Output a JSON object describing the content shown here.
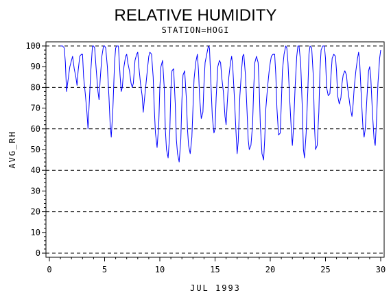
{
  "chart_data": {
    "type": "line",
    "title": "RELATIVE HUMIDITY",
    "subtitle": "STATION=HOGI",
    "xlabel": "JUL 1993",
    "ylabel": "AVG_RH",
    "xlim": [
      0,
      30
    ],
    "ylim": [
      0,
      100
    ],
    "x_ticks": [
      0,
      5,
      10,
      15,
      20,
      25,
      30
    ],
    "y_ticks": [
      0,
      10,
      20,
      30,
      40,
      50,
      60,
      70,
      80,
      90,
      100
    ],
    "reference_lines": [
      0,
      20,
      40,
      60,
      80,
      100
    ],
    "grid": false,
    "line_color": "#0000ff",
    "series": [
      {
        "x": [
          1.0,
          1.1,
          1.2,
          1.35,
          1.45,
          1.55,
          1.7,
          1.85,
          2.0,
          2.1,
          2.25,
          2.4,
          2.5,
          2.6,
          2.75,
          2.9,
          3.0,
          3.1,
          3.25,
          3.4,
          3.5,
          3.6,
          3.75,
          3.9,
          4.0,
          4.1,
          4.25,
          4.4,
          4.5,
          4.6,
          4.75,
          4.9,
          5.0,
          5.1,
          5.25,
          5.4,
          5.5,
          5.6,
          5.75,
          5.9,
          6.0,
          6.1,
          6.25,
          6.4,
          6.5,
          6.6,
          6.75,
          6.9,
          7.0,
          7.1,
          7.25,
          7.4,
          7.5,
          7.6,
          7.75,
          7.9,
          8.0,
          8.1,
          8.25,
          8.4,
          8.5,
          8.6,
          8.75,
          8.9,
          9.0,
          9.1,
          9.25,
          9.4,
          9.5,
          9.6,
          9.75,
          9.9,
          10.0,
          10.1,
          10.25,
          10.4,
          10.5,
          10.6,
          10.75,
          10.9,
          11.0,
          11.1,
          11.25,
          11.4,
          11.5,
          11.6,
          11.75,
          11.9,
          12.0,
          12.1,
          12.25,
          12.4,
          12.5,
          12.6,
          12.75,
          12.9,
          13.0,
          13.1,
          13.25,
          13.4,
          13.5,
          13.6,
          13.75,
          13.9,
          14.0,
          14.1,
          14.25,
          14.4,
          14.5,
          14.6,
          14.75,
          14.9,
          15.0,
          15.1,
          15.25,
          15.4,
          15.5,
          15.6,
          15.75,
          15.9,
          16.0,
          16.1,
          16.25,
          16.4,
          16.5,
          16.6,
          16.75,
          16.9,
          17.0,
          17.1,
          17.25,
          17.4,
          17.5,
          17.6,
          17.75,
          17.9,
          18.0,
          18.1,
          18.25,
          18.4,
          18.5,
          18.6,
          18.75,
          18.9,
          19.0,
          19.1,
          19.25,
          19.4,
          19.5,
          19.6,
          19.75,
          19.9,
          20.0,
          20.1,
          20.25,
          20.4,
          20.5,
          20.6,
          20.75,
          20.9,
          21.0,
          21.1,
          21.25,
          21.4,
          21.5,
          21.6,
          21.75,
          21.9,
          22.0,
          22.1,
          22.25,
          22.4,
          22.5,
          22.6,
          22.75,
          22.9,
          23.0,
          23.1,
          23.25,
          23.4,
          23.5,
          23.6,
          23.75,
          23.9,
          24.0,
          24.1,
          24.25,
          24.4,
          24.5,
          24.6,
          24.75,
          24.9,
          25.0,
          25.1,
          25.25,
          25.4,
          25.5,
          25.6,
          25.75,
          25.9,
          26.0,
          26.1,
          26.25,
          26.4,
          26.5,
          26.6,
          26.75,
          26.9,
          27.0,
          27.1,
          27.25,
          27.4,
          27.5,
          27.6,
          27.75,
          27.9,
          28.0,
          28.1,
          28.25,
          28.4,
          28.5,
          28.6,
          28.75,
          28.9,
          29.0,
          29.1,
          29.25,
          29.4,
          29.5,
          29.6,
          29.75,
          29.9,
          30.0
        ],
        "values": [
          100,
          100,
          100,
          99,
          92,
          78,
          84,
          90,
          93,
          95,
          89,
          85,
          81,
          88,
          95,
          96,
          96,
          85,
          77,
          68,
          60,
          72,
          88,
          100,
          100,
          99,
          88,
          78,
          74,
          84,
          95,
          100,
          100,
          99,
          90,
          75,
          62,
          56,
          70,
          92,
          99,
          100,
          100,
          86,
          78,
          80,
          90,
          95,
          96,
          92,
          88,
          82,
          80,
          82,
          93,
          96,
          97,
          90,
          82,
          76,
          68,
          74,
          82,
          90,
          95,
          97,
          96,
          85,
          70,
          58,
          51,
          62,
          80,
          90,
          93,
          80,
          60,
          50,
          46,
          58,
          79,
          88,
          89,
          72,
          55,
          48,
          44,
          55,
          74,
          86,
          88,
          75,
          60,
          52,
          48,
          56,
          70,
          84,
          92,
          96,
          88,
          75,
          65,
          68,
          82,
          92,
          96,
          100,
          99,
          85,
          66,
          58,
          60,
          75,
          90,
          93,
          92,
          85,
          78,
          66,
          62,
          72,
          85,
          92,
          95,
          90,
          75,
          58,
          48,
          54,
          76,
          88,
          95,
          96,
          86,
          68,
          55,
          50,
          52,
          62,
          80,
          92,
          95,
          92,
          80,
          62,
          48,
          45,
          55,
          70,
          80,
          88,
          92,
          95,
          96,
          96,
          86,
          70,
          57,
          58,
          72,
          88,
          96,
          100,
          99,
          92,
          75,
          60,
          52,
          60,
          80,
          95,
          100,
          100,
          92,
          70,
          50,
          46,
          58,
          78,
          96,
          100,
          99,
          85,
          62,
          50,
          52,
          68,
          88,
          98,
          100,
          100,
          94,
          80,
          76,
          77,
          86,
          94,
          96,
          95,
          88,
          76,
          72,
          75,
          82,
          86,
          88,
          86,
          80,
          76,
          70,
          66,
          72,
          80,
          88,
          94,
          97,
          92,
          75,
          60,
          56,
          60,
          75,
          88,
          90,
          85,
          68,
          55,
          52,
          62,
          82,
          94,
          98
        ]
      }
    ]
  }
}
